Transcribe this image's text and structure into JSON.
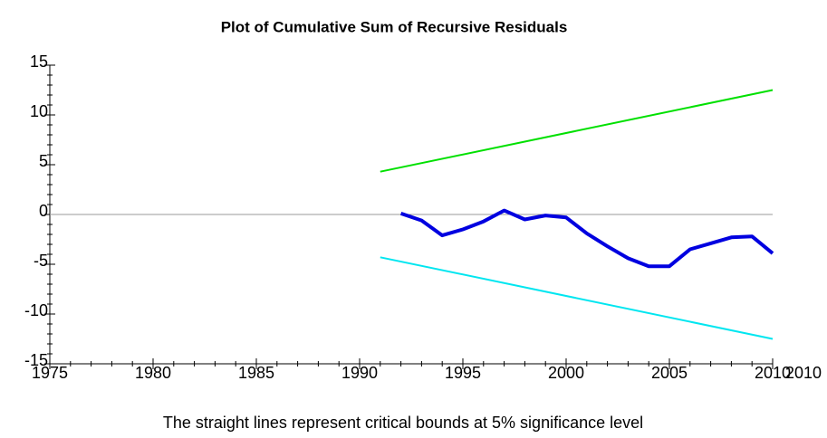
{
  "chart_data": {
    "type": "line",
    "title": "Plot of Cumulative Sum of Recursive Residuals",
    "caption": "The straight lines represent critical bounds at 5% significance level",
    "annotation": "2010",
    "xlim": [
      1975,
      2010
    ],
    "xticks": [
      1975,
      1980,
      1985,
      1990,
      1995,
      2000,
      2005,
      2010
    ],
    "ylim": [
      -15,
      15
    ],
    "yticks": [
      -15,
      -10,
      -5,
      0,
      5,
      10,
      15
    ],
    "series": [
      {
        "color": "#0000e0",
        "x": [
          1992,
          1993,
          1994,
          1995,
          1996,
          1997,
          1998,
          1999,
          2000,
          2001,
          2002,
          2003,
          2004,
          2005,
          2006,
          2007,
          2008,
          2009,
          2010
        ],
        "values": [
          0.1,
          -0.6,
          -2.1,
          -1.5,
          -0.7,
          0.4,
          -0.5,
          -0.1,
          -0.3,
          -1.9,
          -3.2,
          -4.4,
          -5.2,
          -5.2,
          -3.5,
          -2.9,
          -2.3,
          -2.2,
          -3.9
        ]
      },
      {
        "color": "#00e000",
        "x": [
          1991,
          2010
        ],
        "values": [
          4.3,
          12.5
        ]
      },
      {
        "color": "#00e6f0",
        "x": [
          1991,
          2010
        ],
        "values": [
          -4.3,
          -12.5
        ]
      }
    ]
  }
}
